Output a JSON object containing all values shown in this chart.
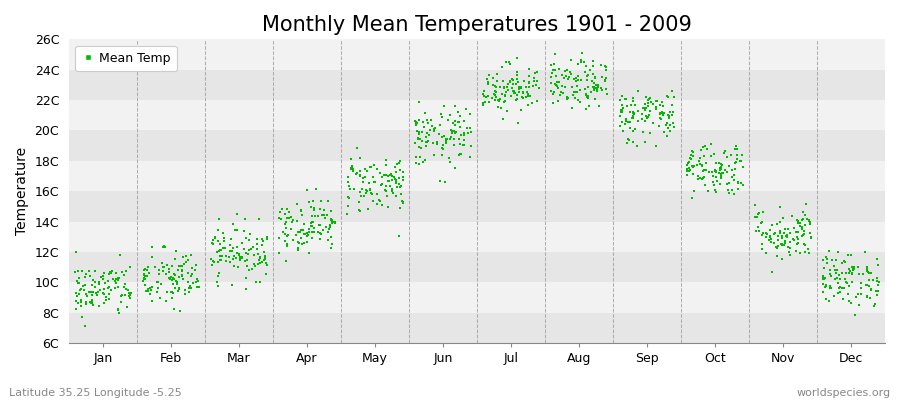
{
  "title": "Monthly Mean Temperatures 1901 - 2009",
  "ylabel": "Temperature",
  "subtitle_left": "Latitude 35.25 Longitude -5.25",
  "subtitle_right": "worldspecies.org",
  "ylim": [
    6,
    26
  ],
  "yticks": [
    6,
    8,
    10,
    12,
    14,
    16,
    18,
    20,
    22,
    24,
    26
  ],
  "ytick_labels": [
    "6C",
    "8C",
    "10C",
    "12C",
    "14C",
    "16C",
    "18C",
    "20C",
    "22C",
    "24C",
    "26C"
  ],
  "months": [
    "Jan",
    "Feb",
    "Mar",
    "Apr",
    "May",
    "Jun",
    "Jul",
    "Aug",
    "Sep",
    "Oct",
    "Nov",
    "Dec"
  ],
  "mean_temps": [
    9.5,
    10.2,
    12.0,
    13.8,
    16.5,
    19.5,
    22.8,
    23.0,
    21.0,
    17.5,
    13.2,
    10.2
  ],
  "std_temps": [
    0.9,
    1.0,
    0.9,
    0.9,
    1.0,
    1.0,
    0.8,
    0.8,
    0.9,
    0.9,
    0.9,
    0.9
  ],
  "n_years": 109,
  "dot_color": "#00BB00",
  "dot_size": 3,
  "band_color_dark": "#e6e6e6",
  "band_color_light": "#f2f2f2",
  "grid_color": "#999999",
  "legend_label": "Mean Temp",
  "title_fontsize": 15,
  "axis_label_fontsize": 10,
  "tick_fontsize": 9,
  "subtitle_fontsize": 8
}
